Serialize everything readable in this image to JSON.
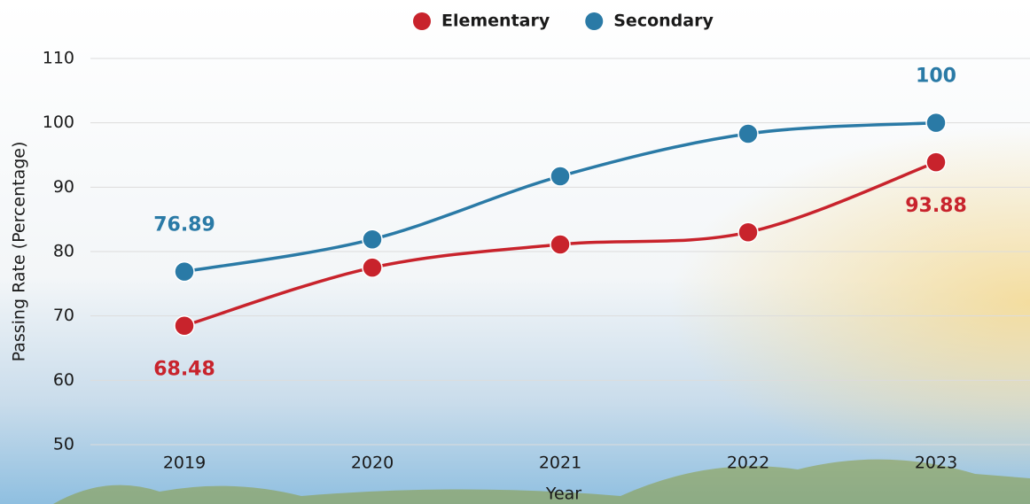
{
  "chart_data": {
    "type": "line",
    "x_label": "Year",
    "y_label": "Passing Rate (Percentage)",
    "categories": [
      "2019",
      "2020",
      "2021",
      "2022",
      "2023"
    ],
    "series": [
      {
        "name": "Elementary",
        "color": "#c8232c",
        "values": [
          68.48,
          77.5,
          81.1,
          83.0,
          93.88
        ]
      },
      {
        "name": "Secondary",
        "color": "#2a7aa6",
        "values": [
          76.89,
          81.9,
          91.7,
          98.3,
          100
        ]
      }
    ],
    "ylim": [
      50,
      110
    ],
    "yticks": [
      50,
      60,
      70,
      80,
      90,
      100,
      110
    ],
    "grid": true,
    "legend": "top"
  }
}
